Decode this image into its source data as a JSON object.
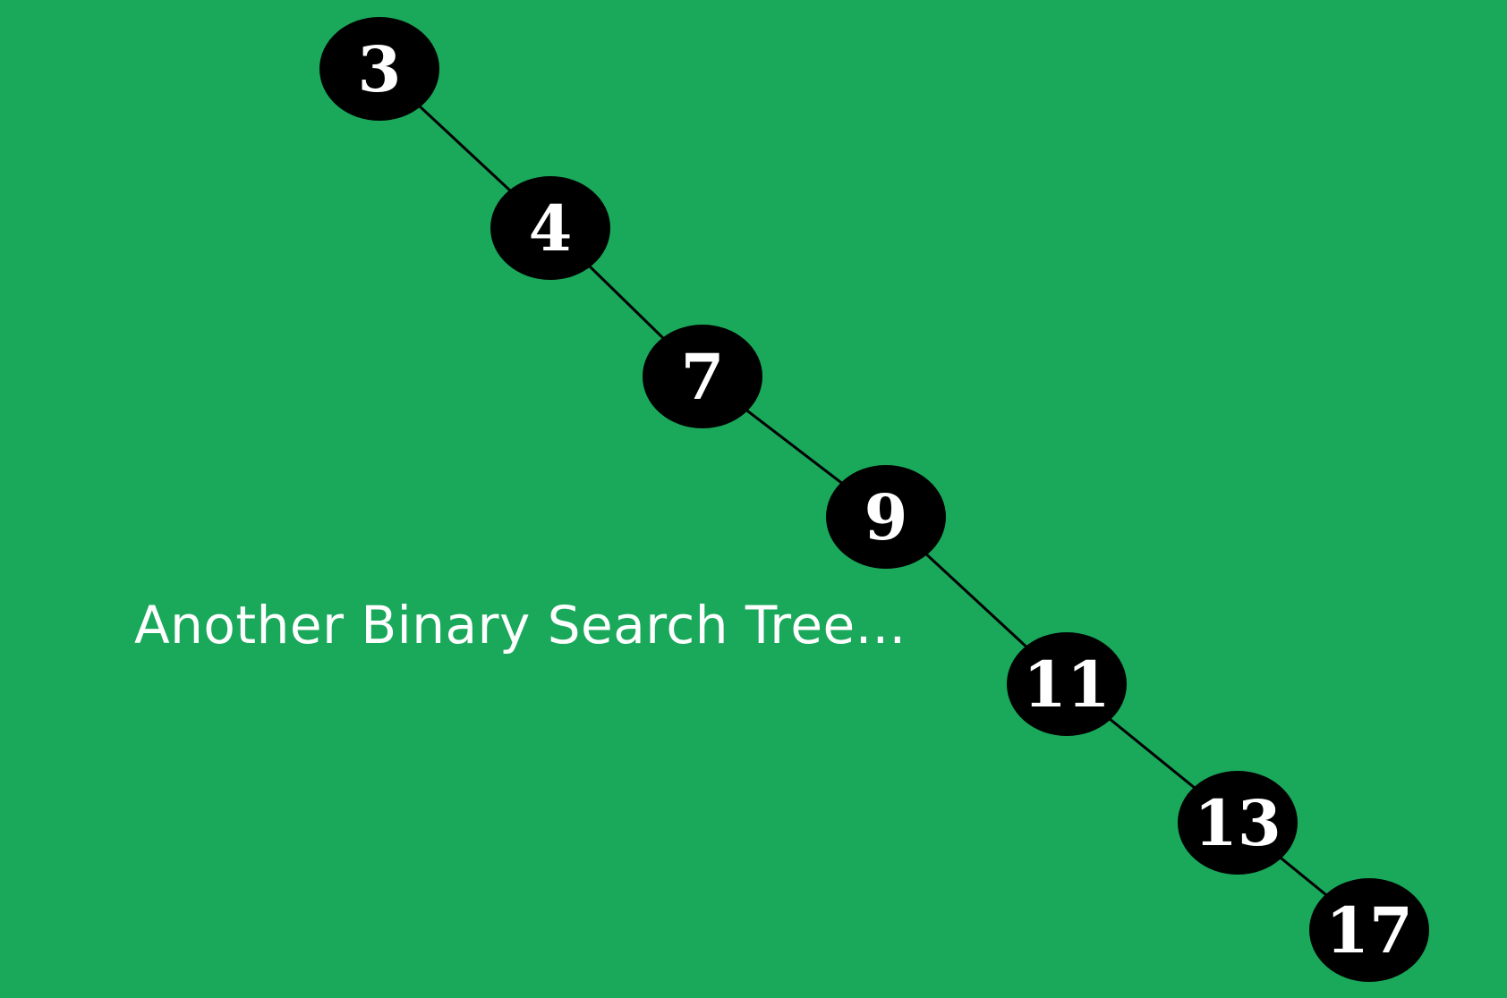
{
  "background_color": "#1aa85b",
  "node_fill": "#000000",
  "node_text_color": "#ffffff",
  "edge_color": "#000000",
  "caption": "Another Binary Search Tree...",
  "tree": {
    "type": "binary-search-tree",
    "nodes": [
      "3",
      "4",
      "7",
      "9",
      "11",
      "13",
      "17"
    ],
    "edges": [
      [
        "3",
        "4"
      ],
      [
        "4",
        "7"
      ],
      [
        "7",
        "9"
      ],
      [
        "9",
        "11"
      ],
      [
        "11",
        "13"
      ],
      [
        "13",
        "17"
      ]
    ]
  }
}
